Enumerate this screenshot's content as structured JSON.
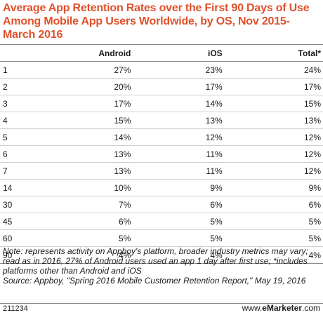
{
  "chart_data": {
    "type": "table",
    "title": "Average App Retention Rates over the First 90 Days of Use Among Mobile App Users Worldwide, by OS, Nov 2015-March 2016",
    "columns": [
      "",
      "Android",
      "iOS",
      "Total*"
    ],
    "rows": [
      [
        "1",
        "27%",
        "23%",
        "24%"
      ],
      [
        "2",
        "20%",
        "17%",
        "17%"
      ],
      [
        "3",
        "17%",
        "14%",
        "15%"
      ],
      [
        "4",
        "15%",
        "13%",
        "13%"
      ],
      [
        "5",
        "14%",
        "12%",
        "12%"
      ],
      [
        "6",
        "13%",
        "11%",
        "12%"
      ],
      [
        "7",
        "13%",
        "11%",
        "12%"
      ],
      [
        "14",
        "10%",
        "9%",
        "9%"
      ],
      [
        "30",
        "7%",
        "6%",
        "6%"
      ],
      [
        "45",
        "6%",
        "5%",
        "5%"
      ],
      [
        "60",
        "5%",
        "5%",
        "5%"
      ],
      [
        "90",
        "4%",
        "4%",
        "4%"
      ]
    ]
  },
  "note": "Note: represents activity on Appboy's platform, broader industry metrics may vary; read as in 2016, 27% of Android users used an app 1 day after first use; *includes platforms other than Android and iOS",
  "source": "Source: Appboy, \"Spring 2016 Mobile Customer Retention Report,\" May 19, 2016",
  "footer": {
    "id": "211234",
    "brand_prefix": "www.",
    "brand_name": "eMarketer",
    "brand_suffix": ".com"
  }
}
